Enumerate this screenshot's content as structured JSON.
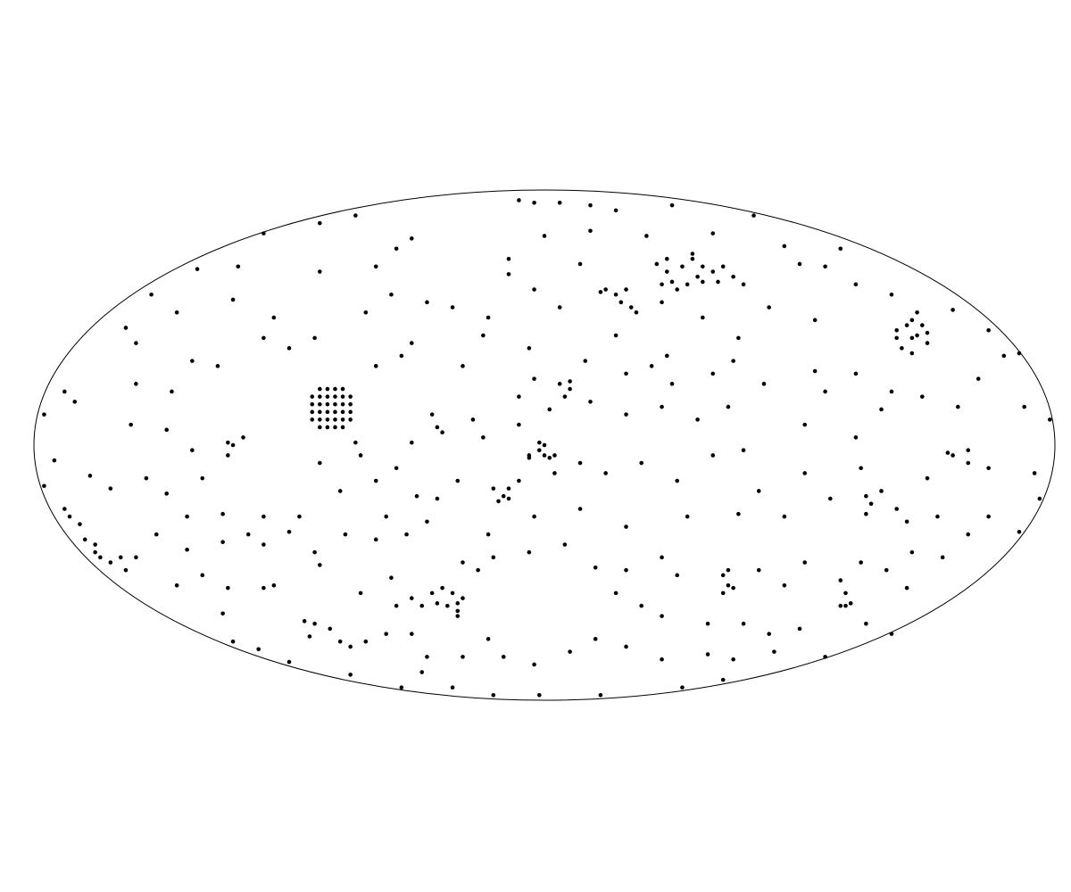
{
  "chart_data": {
    "type": "scatter",
    "color": "#000000",
    "xlim": [
      -1,
      1
    ],
    "ylim": [
      -1,
      1
    ],
    "x": [
      -0.05,
      -0.02,
      0.03,
      0.09,
      0.14,
      0.25,
      0.41,
      -0.44,
      -0.37,
      -0.55,
      -0.26,
      0.09,
      0,
      0.2,
      0.33,
      -0.68,
      -0.6,
      -0.44,
      -0.33,
      -0.29,
      -0.07,
      -0.07,
      0.07,
      0.47,
      0.5,
      0.55,
      0.58,
      -0.77,
      -0.72,
      -0.82,
      -0.61,
      -0.53,
      -0.3,
      -0.23,
      -0.18,
      -0.11,
      -0.02,
      0.03,
      -0.35,
      -0.26,
      -0.12,
      -0.03,
      0.14,
      0.23,
      0.31,
      0.38,
      0.44,
      0.53,
      0.61,
      0.68,
      0.8,
      0.87,
      0.9,
      0.93,
      -0.8,
      -0.69,
      -0.64,
      -0.8,
      -0.94,
      -0.92,
      -0.98,
      -0.73,
      -0.81,
      -0.74,
      -0.55,
      -0.5,
      -0.45,
      -0.33,
      -0.28,
      -0.16,
      -0.02,
      0.08,
      0.16,
      0.21,
      0.24,
      0.25,
      0.33,
      0.37,
      0.43,
      0.53,
      0.55,
      0.61,
      0.68,
      0.74,
      0.85,
      0.81,
      0.94,
      0.99,
      -0.05,
      -0.05,
      0.01,
      0.09,
      0.16,
      0.23,
      0.3,
      0.36,
      0.51,
      0.61,
      0.66,
      -0.22,
      -0.14,
      -0.12,
      -0.26,
      -0.37,
      -0.36,
      -0.62,
      -0.59,
      -0.69,
      -0.96,
      -0.98,
      -0.89,
      -0.85,
      -0.78,
      -0.67,
      -0.74,
      -0.44,
      -0.4,
      -0.33,
      -0.29,
      -0.25,
      -0.21,
      -0.17,
      -0.05,
      0.02,
      0.07,
      0.12,
      0.19,
      0.26,
      0.33,
      0.39,
      0.42,
      0.51,
      0.62,
      0.75,
      0.87,
      0.96,
      0.97,
      0.93,
      0.87,
      0.83,
      0.77,
      0.71,
      0.69,
      0.56,
      0.47,
      0.38,
      0.28,
      0.16,
      0.07,
      -0.02,
      -0.11,
      -0.23,
      -0.31,
      -0.48,
      -0.55,
      -0.63,
      -0.7,
      -0.76,
      -0.63,
      -0.58,
      -0.55,
      -0.5,
      -0.45,
      -0.44,
      -0.39,
      -0.33,
      -0.27,
      -0.16,
      -0.13,
      -0.1,
      -0.03,
      0.04,
      0.1,
      0.16,
      0.23,
      0.26,
      0.36,
      0.37,
      0.42,
      0.47,
      0.51,
      0.58,
      0.62,
      0.67,
      0.72,
      0.78,
      0.71,
      0.59,
      0.5,
      0.63,
      0.68,
      0.44,
      0.39,
      0.32,
      0.23,
      0.19,
      0.14,
      0.1,
      0.16,
      0.23,
      0.32,
      0.37,
      0.45,
      0.55,
      0.05,
      -0.02,
      -0.08,
      -0.11,
      -0.16,
      -0.23,
      -0.26,
      -0.31,
      -0.24,
      -0.18,
      -0.1,
      -0.01,
      0.11,
      0.27,
      0.35,
      -0.28,
      -0.38,
      -0.5,
      -0.56,
      -0.61,
      -0.63,
      -0.72,
      -0.67,
      -0.7,
      -0.55,
      -0.53,
      -0.62,
      -0.36,
      -0.3,
      -0.26,
      -0.8,
      0.22,
      0.24,
      0.25,
      0.27,
      0.29,
      0.28,
      0.26,
      0.3,
      0.31,
      0.33,
      0.35,
      0.37,
      0.24,
      0.23,
      0.31,
      0.34,
      0.29,
      0.39,
      0.11,
      0.12,
      0.14,
      0.16,
      0.15,
      0.17,
      0.18,
      0.69,
      0.71,
      0.72,
      0.73,
      0.72,
      0.75,
      0.7,
      0.74,
      0.75,
      0.69,
      0.72,
      0.73,
      -0.03,
      -0.01,
      0,
      0.01,
      0.02,
      -0.01,
      0,
      -0.03,
      0.03,
      0.05,
      0.04,
      0.05,
      -0.1,
      -0.08,
      -0.07,
      -0.09,
      -0.07,
      -0.21,
      -0.2,
      -0.62,
      -0.61,
      -0.22,
      -0.2,
      -0.18,
      -0.17,
      -0.19,
      -0.17,
      -0.21,
      -0.16,
      -0.24,
      -0.17,
      -0.29,
      -0.47,
      -0.45,
      -0.42,
      -0.4,
      -0.38,
      -0.35,
      -0.46,
      -0.94,
      -0.93,
      -0.91,
      -0.9,
      -0.88,
      -0.87,
      -0.85,
      -0.83,
      -0.88,
      -0.82,
      0.63,
      0.64,
      0.66,
      0.63,
      0.79,
      0.8,
      0.83,
      0.83,
      0.35,
      0.36,
      0.35,
      0.59,
      0.58,
      0.6,
      -0.44,
      -0.425,
      -0.41,
      -0.395,
      -0.455,
      -0.44,
      -0.425,
      -0.41,
      -0.395,
      -0.38,
      -0.455,
      -0.44,
      -0.425,
      -0.41,
      -0.395,
      -0.38,
      -0.455,
      -0.44,
      -0.425,
      -0.41,
      -0.395,
      -0.38,
      -0.455,
      -0.44,
      -0.425,
      -0.41,
      -0.395,
      -0.38,
      -0.44,
      -0.425,
      -0.41,
      -0.395
    ],
    "values": [
      0.96,
      0.95,
      0.95,
      0.94,
      0.92,
      0.94,
      0.9,
      0.87,
      0.9,
      0.83,
      0.81,
      0.84,
      0.82,
      0.82,
      0.83,
      0.69,
      0.7,
      0.68,
      0.7,
      0.77,
      0.73,
      0.67,
      0.71,
      0.78,
      0.71,
      0.7,
      0.77,
      0.59,
      0.52,
      0.46,
      0.57,
      0.5,
      0.59,
      0.56,
      0.54,
      0.5,
      0.61,
      0.54,
      0.52,
      0.4,
      0.43,
      0.38,
      0.43,
      0.56,
      0.5,
      0.42,
      0.54,
      0.49,
      0.63,
      0.59,
      0.53,
      0.45,
      0.35,
      0.36,
      0.4,
      0.33,
      0.31,
      0.24,
      0.21,
      0.17,
      0.12,
      0.21,
      0.08,
      0.06,
      0.42,
      0.38,
      0.42,
      0.31,
      0.35,
      0.31,
      0.26,
      0.33,
      0.28,
      0.31,
      0.35,
      0.24,
      0.28,
      0.33,
      0.24,
      0.29,
      0.21,
      0.28,
      0.21,
      0.19,
      0.26,
      0.15,
      0.15,
      0.1,
      0.19,
      0.08,
      0.14,
      0.17,
      0.12,
      0.15,
      0.1,
      0.15,
      0.08,
      0.03,
      0.14,
      0.12,
      0.1,
      0.03,
      0.01,
      0.01,
      -0.04,
      0.01,
      0.03,
      -0.02,
      -0.06,
      -0.16,
      -0.12,
      -0.17,
      -0.13,
      -0.13,
      -0.19,
      -0.07,
      -0.18,
      -0.14,
      -0.09,
      -0.2,
      -0.21,
      -0.14,
      -0.14,
      -0.11,
      -0.07,
      -0.11,
      -0.07,
      -0.14,
      -0.04,
      -0.02,
      -0.18,
      -0.11,
      -0.09,
      -0.13,
      -0.09,
      -0.11,
      -0.21,
      -0.34,
      -0.28,
      -0.35,
      -0.28,
      -0.3,
      -0.25,
      -0.21,
      -0.28,
      -0.27,
      -0.28,
      -0.32,
      -0.25,
      -0.28,
      -0.35,
      -0.3,
      -0.28,
      -0.28,
      -0.28,
      -0.27,
      -0.28,
      -0.35,
      -0.38,
      -0.35,
      -0.39,
      -0.34,
      -0.42,
      -0.47,
      -0.35,
      -0.37,
      -0.35,
      -0.46,
      -0.49,
      -0.44,
      -0.42,
      -0.39,
      -0.48,
      -0.49,
      -0.44,
      -0.51,
      -0.49,
      -0.56,
      -0.49,
      -0.55,
      -0.46,
      -0.53,
      -0.46,
      -0.49,
      -0.42,
      -0.44,
      -0.56,
      -0.63,
      -0.72,
      -0.7,
      -0.74,
      -0.74,
      -0.7,
      -0.7,
      -0.67,
      -0.63,
      -0.58,
      -0.76,
      -0.79,
      -0.84,
      -0.82,
      -0.84,
      -0.81,
      -0.83,
      -0.81,
      -0.86,
      -0.83,
      -0.76,
      -0.83,
      -0.83,
      -0.74,
      -0.74,
      -0.89,
      -0.95,
      -0.98,
      -0.98,
      -0.98,
      -0.95,
      -0.92,
      -0.95,
      -0.9,
      -0.85,
      -0.8,
      -0.77,
      -0.66,
      -0.55,
      -0.51,
      -0.41,
      -0.56,
      -0.55,
      -0.56,
      -0.58,
      -0.52,
      -0.6,
      -0.44,
      0.71,
      0.68,
      0.64,
      0.7,
      0.73,
      0.63,
      0.61,
      0.66,
      0.7,
      0.68,
      0.7,
      0.66,
      0.73,
      0.63,
      0.64,
      0.64,
      0.75,
      0.63,
      0.6,
      0.61,
      0.59,
      0.61,
      0.56,
      0.54,
      0.52,
      0.45,
      0.47,
      0.49,
      0.43,
      0.42,
      0.4,
      0.38,
      0.47,
      0.44,
      0.42,
      0.36,
      0.52,
      -0.04,
      -0.02,
      -0.04,
      -0.05,
      -0.04,
      0.01,
      0,
      -0.05,
      0.24,
      0.22,
      0.19,
      0.25,
      -0.17,
      -0.2,
      -0.21,
      -0.22,
      -0.17,
      0.07,
      0.05,
      -0.04,
      0,
      -0.58,
      -0.56,
      -0.58,
      -0.62,
      -0.63,
      -0.65,
      -0.62,
      -0.6,
      -0.63,
      -0.67,
      -0.63,
      -0.69,
      -0.7,
      -0.72,
      -0.77,
      -0.79,
      -0.77,
      -0.75,
      -0.25,
      -0.28,
      -0.31,
      -0.37,
      -0.42,
      -0.44,
      -0.46,
      -0.44,
      -0.39,
      -0.49,
      -0.2,
      -0.23,
      -0.18,
      -0.27,
      -0.03,
      -0.04,
      -0.02,
      -0.07,
      -0.51,
      -0.55,
      -0.58,
      -0.58,
      -0.63,
      -0.62,
      0.07,
      0.07,
      0.07,
      0.07,
      0.1,
      0.1,
      0.1,
      0.1,
      0.1,
      0.1,
      0.13,
      0.13,
      0.13,
      0.13,
      0.13,
      0.13,
      0.16,
      0.16,
      0.16,
      0.16,
      0.16,
      0.16,
      0.19,
      0.19,
      0.19,
      0.19,
      0.19,
      0.19,
      0.22,
      0.22,
      0.22,
      0.22
    ]
  }
}
